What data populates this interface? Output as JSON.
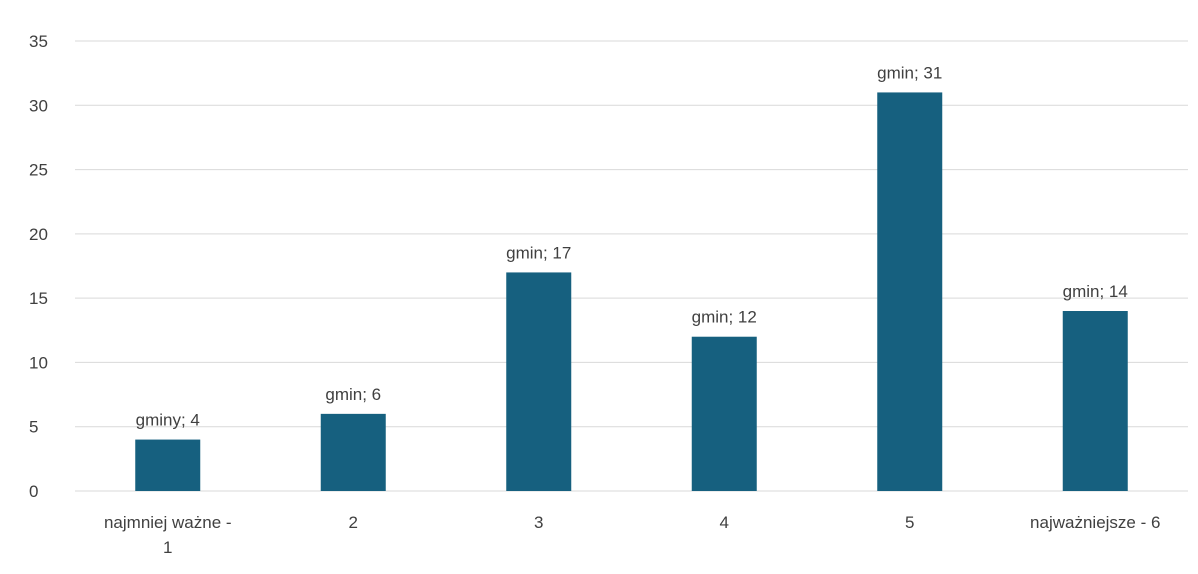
{
  "chart_data": {
    "type": "bar",
    "categories": [
      "najmniej ważne - 1",
      "2",
      "3",
      "4",
      "5",
      "najważniejsze - 6"
    ],
    "category_label_lines": [
      [
        "najmniej ważne -",
        "1"
      ],
      [
        "2"
      ],
      [
        "3"
      ],
      [
        "4"
      ],
      [
        "5"
      ],
      [
        "najważniejsze - 6"
      ]
    ],
    "values": [
      4,
      6,
      17,
      12,
      31,
      14
    ],
    "data_labels": [
      "gminy; 4",
      "gmin; 6",
      "gmin; 17",
      "gmin; 12",
      "gmin; 31",
      "gmin; 14"
    ],
    "title": "",
    "xlabel": "",
    "ylabel": "",
    "ylim": [
      0,
      35
    ],
    "yticks": [
      0,
      5,
      10,
      15,
      20,
      25,
      30,
      35
    ],
    "grid": true,
    "legend": "none",
    "bar_color": "#16607f",
    "grid_color": "#d9d9d9",
    "text_color": "#404040"
  }
}
